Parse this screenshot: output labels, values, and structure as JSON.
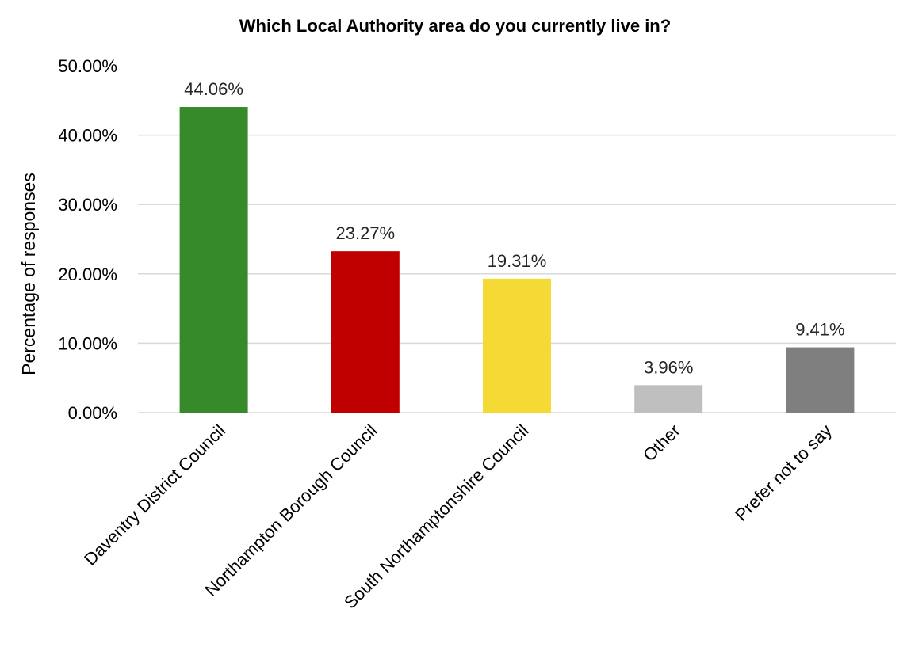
{
  "chart_data": {
    "type": "bar",
    "title": "Which Local Authority area do you currently live in?",
    "xlabel": "",
    "ylabel": "Percentage of responses",
    "ylim": [
      0,
      50
    ],
    "yticks": [
      "0.00%",
      "10.00%",
      "20.00%",
      "30.00%",
      "40.00%",
      "50.00%"
    ],
    "grid": true,
    "legend": "none",
    "categories": [
      "Daventry District Council",
      "Northampton Borough Council",
      "South Northamptonshire Council",
      "Other",
      "Prefer not to say"
    ],
    "values": [
      44.06,
      23.27,
      19.31,
      3.96,
      9.41
    ],
    "data_labels": [
      "44.06%",
      "23.27%",
      "19.31%",
      "3.96%",
      "9.41%"
    ],
    "colors": [
      "#368a2a",
      "#c00000",
      "#f5da35",
      "#bfbfbf",
      "#7f7f7f"
    ]
  }
}
